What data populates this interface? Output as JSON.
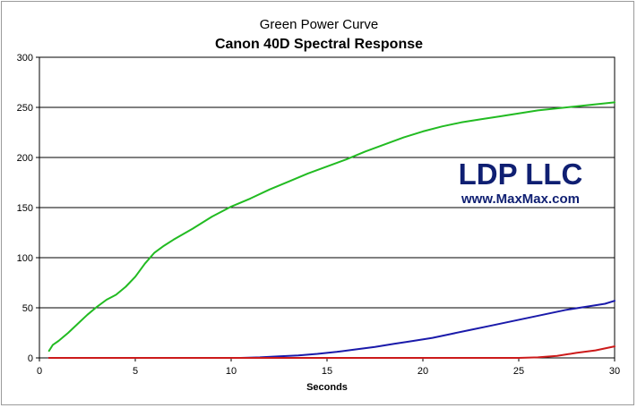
{
  "chart_data": {
    "type": "line",
    "title": "Green Power Curve",
    "subtitle": "Canon 40D Spectral Response",
    "xlabel": "Seconds",
    "ylabel": "",
    "xlim": [
      0,
      30
    ],
    "ylim": [
      0,
      300
    ],
    "x_ticks": [
      0,
      5,
      10,
      15,
      20,
      25,
      30
    ],
    "y_ticks": [
      0,
      50,
      100,
      150,
      200,
      250,
      300
    ],
    "grid": "horizontal",
    "legend": "none",
    "series": [
      {
        "color": "#22bb22",
        "points": [
          [
            0.5,
            7
          ],
          [
            0.7,
            13
          ],
          [
            1,
            17
          ],
          [
            1.5,
            25
          ],
          [
            2,
            34
          ],
          [
            2.5,
            43
          ],
          [
            3,
            51
          ],
          [
            3.5,
            58
          ],
          [
            4,
            63
          ],
          [
            4.5,
            71
          ],
          [
            5,
            81
          ],
          [
            5.5,
            94
          ],
          [
            6,
            105
          ],
          [
            6.5,
            112
          ],
          [
            7,
            118
          ],
          [
            8,
            129
          ],
          [
            9,
            141
          ],
          [
            10,
            151
          ],
          [
            11,
            159
          ],
          [
            12,
            168
          ],
          [
            13,
            176
          ],
          [
            14,
            184
          ],
          [
            15,
            191
          ],
          [
            16,
            198
          ],
          [
            17,
            206
          ],
          [
            18,
            213
          ],
          [
            19,
            220
          ],
          [
            20,
            226
          ],
          [
            21,
            231
          ],
          [
            22,
            235
          ],
          [
            23,
            238
          ],
          [
            24,
            241
          ],
          [
            25,
            244
          ],
          [
            26,
            247
          ],
          [
            27,
            249
          ],
          [
            28,
            251
          ],
          [
            29,
            253
          ],
          [
            30,
            255
          ]
        ]
      },
      {
        "color": "#1a1aaa",
        "points": [
          [
            0.5,
            0
          ],
          [
            10.5,
            0
          ],
          [
            11.5,
            0.5
          ],
          [
            12.5,
            1.5
          ],
          [
            13.5,
            2.5
          ],
          [
            14.5,
            4
          ],
          [
            15.5,
            6
          ],
          [
            16.5,
            8.5
          ],
          [
            17.5,
            11
          ],
          [
            18.5,
            14
          ],
          [
            19.5,
            17
          ],
          [
            20.5,
            20
          ],
          [
            21.5,
            24
          ],
          [
            22.5,
            28
          ],
          [
            23.5,
            32
          ],
          [
            24.5,
            36
          ],
          [
            25.5,
            40
          ],
          [
            26.5,
            44
          ],
          [
            27.5,
            48
          ],
          [
            28.5,
            51
          ],
          [
            29.5,
            54
          ],
          [
            30,
            57
          ]
        ]
      },
      {
        "color": "#cc1a1a",
        "points": [
          [
            0.5,
            0
          ],
          [
            25,
            0
          ],
          [
            26,
            0.5
          ],
          [
            27,
            2
          ],
          [
            28,
            5
          ],
          [
            29,
            7.5
          ],
          [
            30,
            11.5
          ]
        ]
      }
    ]
  },
  "watermark": {
    "line1": "LDP LLC",
    "line2": "www.MaxMax.com"
  }
}
